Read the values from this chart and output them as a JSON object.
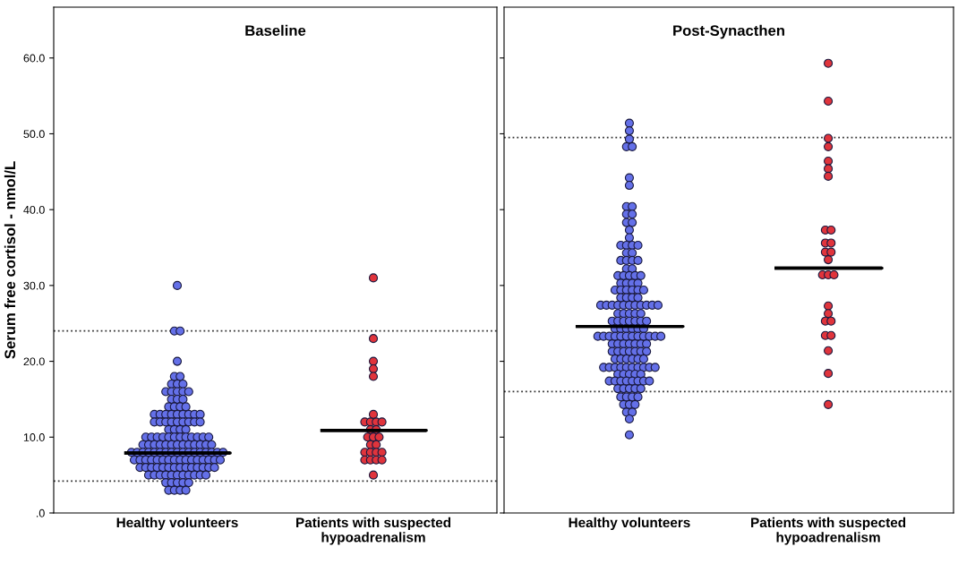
{
  "chart_data": [
    {
      "type": "scatter",
      "title": "Baseline",
      "ylabel": "Serum free cortisol - nmol/L",
      "categories": [
        "Healthy volunteers",
        "Patients with suspected\nhypoadrenalism"
      ],
      "ylim": [
        0,
        66.7
      ],
      "yticks": [
        {
          "value": 0,
          "label": ".0"
        },
        {
          "value": 10,
          "label": "10.0"
        },
        {
          "value": 20,
          "label": "20.0"
        },
        {
          "value": 30,
          "label": "30.0"
        },
        {
          "value": 40,
          "label": "40.0"
        },
        {
          "value": 50,
          "label": "50.0"
        },
        {
          "value": 60,
          "label": "60.0"
        }
      ],
      "grid": false,
      "legend": false,
      "marker": "circle",
      "series": [
        {
          "type": "scatter",
          "color": "#6470e8",
          "x": [
            "Healthy volunteers",
            "Healthy volunteers",
            "Healthy volunteers",
            "Healthy volunteers",
            "Healthy volunteers",
            "Healthy volunteers",
            "Healthy volunteers",
            "Healthy volunteers",
            "Healthy volunteers",
            "Healthy volunteers",
            "Healthy volunteers",
            "Healthy volunteers",
            "Healthy volunteers",
            "Healthy volunteers",
            "Healthy volunteers",
            "Healthy volunteers",
            "Healthy volunteers",
            "Healthy volunteers",
            "Healthy volunteers",
            "Healthy volunteers",
            "Healthy volunteers",
            "Healthy volunteers",
            "Healthy volunteers",
            "Healthy volunteers",
            "Healthy volunteers",
            "Healthy volunteers",
            "Healthy volunteers",
            "Healthy volunteers",
            "Healthy volunteers",
            "Healthy volunteers",
            "Healthy volunteers",
            "Healthy volunteers",
            "Healthy volunteers",
            "Healthy volunteers",
            "Healthy volunteers",
            "Healthy volunteers",
            "Healthy volunteers",
            "Healthy volunteers",
            "Healthy volunteers",
            "Healthy volunteers",
            "Healthy volunteers",
            "Healthy volunteers",
            "Healthy volunteers",
            "Healthy volunteers",
            "Healthy volunteers",
            "Healthy volunteers",
            "Healthy volunteers",
            "Healthy volunteers",
            "Healthy volunteers",
            "Healthy volunteers",
            "Healthy volunteers",
            "Healthy volunteers",
            "Healthy volunteers",
            "Healthy volunteers",
            "Healthy volunteers",
            "Healthy volunteers",
            "Healthy volunteers",
            "Healthy volunteers",
            "Healthy volunteers",
            "Healthy volunteers",
            "Healthy volunteers",
            "Healthy volunteers",
            "Healthy volunteers",
            "Healthy volunteers",
            "Healthy volunteers",
            "Healthy volunteers",
            "Healthy volunteers",
            "Healthy volunteers",
            "Healthy volunteers",
            "Healthy volunteers",
            "Healthy volunteers",
            "Healthy volunteers",
            "Healthy volunteers",
            "Healthy volunteers",
            "Healthy volunteers",
            "Healthy volunteers",
            "Healthy volunteers",
            "Healthy volunteers",
            "Healthy volunteers",
            "Healthy volunteers",
            "Healthy volunteers",
            "Healthy volunteers",
            "Healthy volunteers",
            "Healthy volunteers",
            "Healthy volunteers",
            "Healthy volunteers",
            "Healthy volunteers",
            "Healthy volunteers",
            "Healthy volunteers",
            "Healthy volunteers",
            "Healthy volunteers",
            "Healthy volunteers",
            "Healthy volunteers",
            "Healthy volunteers",
            "Healthy volunteers",
            "Healthy volunteers",
            "Healthy volunteers",
            "Healthy volunteers",
            "Healthy volunteers",
            "Healthy volunteers",
            "Healthy volunteers",
            "Healthy volunteers",
            "Healthy volunteers",
            "Healthy volunteers",
            "Healthy volunteers",
            "Healthy volunteers",
            "Healthy volunteers",
            "Healthy volunteers",
            "Healthy volunteers",
            "Healthy volunteers",
            "Healthy volunteers",
            "Healthy volunteers",
            "Healthy volunteers",
            "Healthy volunteers",
            "Healthy volunteers",
            "Healthy volunteers",
            "Healthy volunteers",
            "Healthy volunteers",
            "Healthy volunteers",
            "Healthy volunteers",
            "Healthy volunteers",
            "Healthy volunteers",
            "Healthy volunteers",
            "Healthy volunteers",
            "Healthy volunteers",
            "Healthy volunteers",
            "Healthy volunteers",
            "Healthy volunteers",
            "Healthy volunteers",
            "Healthy volunteers",
            "Healthy volunteers",
            "Healthy volunteers",
            "Healthy volunteers",
            "Healthy volunteers",
            "Healthy volunteers"
          ],
          "values": [
            30,
            24,
            24,
            20,
            18,
            18,
            17,
            17,
            17,
            16,
            16,
            16,
            16,
            16,
            15,
            15,
            15,
            14,
            14,
            14,
            14,
            13,
            13,
            13,
            13,
            13,
            13,
            13,
            13,
            13,
            12,
            12,
            12,
            12,
            12,
            12,
            12,
            12,
            12,
            11,
            11,
            11,
            11,
            10,
            10,
            10,
            10,
            10,
            10,
            10,
            10,
            10,
            10,
            10,
            10,
            9,
            9,
            9,
            9,
            9,
            9,
            9,
            9,
            9,
            9,
            9,
            9,
            9,
            8,
            8,
            8,
            8,
            8,
            8,
            8,
            8,
            8,
            8,
            8,
            8,
            8,
            8,
            8,
            8,
            8,
            7,
            7,
            7,
            7,
            7,
            7,
            7,
            7,
            7,
            7,
            7,
            7,
            7,
            7,
            7,
            7,
            6,
            6,
            6,
            6,
            6,
            6,
            6,
            6,
            6,
            6,
            6,
            6,
            6,
            6,
            5,
            5,
            5,
            5,
            5,
            5,
            5,
            5,
            5,
            5,
            5,
            4,
            4,
            4,
            4,
            4,
            3,
            3,
            3,
            3
          ]
        },
        {
          "type": "scatter",
          "color": "#e0343c",
          "x": [
            "Patients with suspected\nhypoadrenalism",
            "Patients with suspected\nhypoadrenalism",
            "Patients with suspected\nhypoadrenalism",
            "Patients with suspected\nhypoadrenalism",
            "Patients with suspected\nhypoadrenalism",
            "Patients with suspected\nhypoadrenalism",
            "Patients with suspected\nhypoadrenalism",
            "Patients with suspected\nhypoadrenalism",
            "Patients with suspected\nhypoadrenalism",
            "Patients with suspected\nhypoadrenalism",
            "Patients with suspected\nhypoadrenalism",
            "Patients with suspected\nhypoadrenalism",
            "Patients with suspected\nhypoadrenalism",
            "Patients with suspected\nhypoadrenalism",
            "Patients with suspected\nhypoadrenalism",
            "Patients with suspected\nhypoadrenalism",
            "Patients with suspected\nhypoadrenalism",
            "Patients with suspected\nhypoadrenalism",
            "Patients with suspected\nhypoadrenalism",
            "Patients with suspected\nhypoadrenalism",
            "Patients with suspected\nhypoadrenalism",
            "Patients with suspected\nhypoadrenalism",
            "Patients with suspected\nhypoadrenalism",
            "Patients with suspected\nhypoadrenalism",
            "Patients with suspected\nhypoadrenalism",
            "Patients with suspected\nhypoadrenalism"
          ],
          "values": [
            31,
            23,
            20,
            19,
            18,
            13,
            12,
            12,
            12,
            12,
            11,
            11,
            10,
            10,
            10,
            9,
            9,
            8,
            8,
            8,
            8,
            7,
            7,
            7,
            7,
            5
          ]
        },
        {
          "type": "box",
          "color": "#000000",
          "boxes": [
            {
              "low": 7.9,
              "q1": 7.9,
              "median": 7.9,
              "q3": 7.9,
              "high": 7.9
            },
            {
              "low": 10.9,
              "q1": 10.9,
              "median": 10.9,
              "q3": 10.9,
              "high": 10.9
            }
          ]
        }
      ],
      "ref_lines": [
        {
          "axis": "y",
          "value": 24,
          "color": "#333333",
          "line_style": "dotted"
        },
        {
          "axis": "y",
          "value": 4.2,
          "color": "#333333",
          "line_style": "dotted"
        }
      ]
    },
    {
      "type": "scatter",
      "title": "Post-Synacthen",
      "categories": [
        "Healthy volunteers",
        "Patients with suspected\nhypoadrenalism"
      ],
      "ylim": [
        0,
        66.7
      ],
      "yticks": [
        0,
        10,
        20,
        30,
        40,
        50,
        60
      ],
      "tick_labels": "x",
      "grid": false,
      "legend": false,
      "marker": "circle",
      "series": [
        {
          "type": "scatter",
          "color": "#6470e8",
          "x": [
            "Healthy volunteers",
            "Healthy volunteers",
            "Healthy volunteers",
            "Healthy volunteers",
            "Healthy volunteers",
            "Healthy volunteers",
            "Healthy volunteers",
            "Healthy volunteers",
            "Healthy volunteers",
            "Healthy volunteers",
            "Healthy volunteers",
            "Healthy volunteers",
            "Healthy volunteers",
            "Healthy volunteers",
            "Healthy volunteers",
            "Healthy volunteers",
            "Healthy volunteers",
            "Healthy volunteers",
            "Healthy volunteers",
            "Healthy volunteers",
            "Healthy volunteers",
            "Healthy volunteers",
            "Healthy volunteers",
            "Healthy volunteers",
            "Healthy volunteers",
            "Healthy volunteers",
            "Healthy volunteers",
            "Healthy volunteers",
            "Healthy volunteers",
            "Healthy volunteers",
            "Healthy volunteers",
            "Healthy volunteers",
            "Healthy volunteers",
            "Healthy volunteers",
            "Healthy volunteers",
            "Healthy volunteers",
            "Healthy volunteers",
            "Healthy volunteers",
            "Healthy volunteers",
            "Healthy volunteers",
            "Healthy volunteers",
            "Healthy volunteers",
            "Healthy volunteers",
            "Healthy volunteers",
            "Healthy volunteers",
            "Healthy volunteers",
            "Healthy volunteers",
            "Healthy volunteers",
            "Healthy volunteers",
            "Healthy volunteers",
            "Healthy volunteers",
            "Healthy volunteers",
            "Healthy volunteers",
            "Healthy volunteers",
            "Healthy volunteers",
            "Healthy volunteers",
            "Healthy volunteers",
            "Healthy volunteers",
            "Healthy volunteers",
            "Healthy volunteers",
            "Healthy volunteers",
            "Healthy volunteers",
            "Healthy volunteers",
            "Healthy volunteers",
            "Healthy volunteers",
            "Healthy volunteers",
            "Healthy volunteers",
            "Healthy volunteers",
            "Healthy volunteers",
            "Healthy volunteers",
            "Healthy volunteers",
            "Healthy volunteers",
            "Healthy volunteers",
            "Healthy volunteers",
            "Healthy volunteers",
            "Healthy volunteers",
            "Healthy volunteers",
            "Healthy volunteers",
            "Healthy volunteers",
            "Healthy volunteers",
            "Healthy volunteers",
            "Healthy volunteers",
            "Healthy volunteers",
            "Healthy volunteers",
            "Healthy volunteers",
            "Healthy volunteers",
            "Healthy volunteers",
            "Healthy volunteers",
            "Healthy volunteers",
            "Healthy volunteers",
            "Healthy volunteers",
            "Healthy volunteers",
            "Healthy volunteers",
            "Healthy volunteers",
            "Healthy volunteers",
            "Healthy volunteers",
            "Healthy volunteers",
            "Healthy volunteers",
            "Healthy volunteers",
            "Healthy volunteers",
            "Healthy volunteers",
            "Healthy volunteers",
            "Healthy volunteers",
            "Healthy volunteers",
            "Healthy volunteers",
            "Healthy volunteers",
            "Healthy volunteers",
            "Healthy volunteers",
            "Healthy volunteers",
            "Healthy volunteers",
            "Healthy volunteers",
            "Healthy volunteers",
            "Healthy volunteers",
            "Healthy volunteers",
            "Healthy volunteers",
            "Healthy volunteers",
            "Healthy volunteers",
            "Healthy volunteers",
            "Healthy volunteers",
            "Healthy volunteers",
            "Healthy volunteers",
            "Healthy volunteers",
            "Healthy volunteers",
            "Healthy volunteers",
            "Healthy volunteers",
            "Healthy volunteers",
            "Healthy volunteers",
            "Healthy volunteers",
            "Healthy volunteers",
            "Healthy volunteers",
            "Healthy volunteers",
            "Healthy volunteers",
            "Healthy volunteers",
            "Healthy volunteers",
            "Healthy volunteers",
            "Healthy volunteers",
            "Healthy volunteers",
            "Healthy volunteers",
            "Healthy volunteers",
            "Healthy volunteers",
            "Healthy volunteers",
            "Healthy volunteers",
            "Healthy volunteers",
            "Healthy volunteers",
            "Healthy volunteers",
            "Healthy volunteers"
          ],
          "values": [
            51.4,
            50.4,
            49.3,
            48.3,
            48.3,
            44.2,
            43.2,
            40.4,
            40.4,
            39.4,
            39.4,
            38.3,
            38.3,
            37.3,
            36.3,
            35.3,
            35.3,
            35.3,
            35.3,
            34.3,
            34.3,
            33.3,
            33.3,
            33.3,
            33.3,
            32.2,
            32.2,
            31.3,
            31.3,
            31.3,
            31.3,
            31.3,
            30.3,
            30.3,
            30.3,
            30.3,
            29.4,
            29.4,
            29.4,
            29.4,
            29.4,
            29.4,
            28.4,
            28.4,
            28.4,
            28.4,
            27.4,
            27.4,
            27.4,
            27.4,
            27.4,
            27.4,
            27.4,
            27.4,
            27.4,
            27.4,
            27.4,
            26.3,
            26.3,
            26.3,
            26.3,
            26.3,
            25.3,
            25.3,
            25.3,
            25.3,
            25.3,
            25.3,
            25.3,
            24.3,
            24.3,
            24.3,
            24.3,
            24.3,
            24.3,
            23.3,
            23.3,
            23.3,
            23.3,
            23.3,
            23.3,
            23.3,
            23.3,
            23.3,
            23.3,
            23.3,
            23.3,
            22.3,
            22.3,
            22.3,
            22.3,
            22.3,
            22.3,
            22.3,
            21.3,
            21.3,
            21.3,
            21.3,
            21.3,
            21.3,
            21.3,
            20.3,
            20.3,
            20.3,
            20.3,
            20.3,
            20.3,
            19.2,
            19.2,
            19.2,
            19.2,
            19.2,
            19.2,
            19.2,
            19.2,
            19.2,
            19.2,
            18.3,
            18.3,
            18.3,
            18.3,
            18.3,
            17.4,
            17.4,
            17.4,
            17.4,
            17.4,
            17.4,
            17.4,
            17.4,
            16.4,
            16.4,
            16.4,
            16.4,
            16.4,
            15.3,
            15.3,
            15.3,
            15.3,
            14.3,
            14.3,
            14.3,
            13.3,
            13.3,
            12.4,
            10.3
          ]
        },
        {
          "type": "scatter",
          "color": "#e0343c",
          "x": [
            "Patients with suspected\nhypoadrenalism",
            "Patients with suspected\nhypoadrenalism",
            "Patients with suspected\nhypoadrenalism",
            "Patients with suspected\nhypoadrenalism",
            "Patients with suspected\nhypoadrenalism",
            "Patients with suspected\nhypoadrenalism",
            "Patients with suspected\nhypoadrenalism",
            "Patients with suspected\nhypoadrenalism",
            "Patients with suspected\nhypoadrenalism",
            "Patients with suspected\nhypoadrenalism",
            "Patients with suspected\nhypoadrenalism",
            "Patients with suspected\nhypoadrenalism",
            "Patients with suspected\nhypoadrenalism",
            "Patients with suspected\nhypoadrenalism",
            "Patients with suspected\nhypoadrenalism",
            "Patients with suspected\nhypoadrenalism",
            "Patients with suspected\nhypoadrenalism",
            "Patients with suspected\nhypoadrenalism",
            "Patients with suspected\nhypoadrenalism",
            "Patients with suspected\nhypoadrenalism",
            "Patients with suspected\nhypoadrenalism",
            "Patients with suspected\nhypoadrenalism",
            "Patients with suspected\nhypoadrenalism",
            "Patients with suspected\nhypoadrenalism",
            "Patients with suspected\nhypoadrenalism",
            "Patients with suspected\nhypoadrenalism"
          ],
          "values": [
            59.3,
            54.3,
            49.4,
            48.3,
            46.4,
            45.4,
            44.4,
            37.3,
            37.3,
            35.6,
            35.6,
            34.4,
            34.4,
            33.4,
            31.4,
            31.4,
            31.4,
            27.3,
            26.3,
            25.3,
            25.3,
            23.4,
            23.4,
            21.4,
            18.4,
            14.3
          ]
        },
        {
          "type": "box",
          "color": "#000000",
          "boxes": [
            {
              "low": 24.6,
              "q1": 24.6,
              "median": 24.6,
              "q3": 24.6,
              "high": 24.6
            },
            {
              "low": 32.3,
              "q1": 32.3,
              "median": 32.3,
              "q3": 32.3,
              "high": 32.3
            }
          ]
        }
      ],
      "ref_lines": [
        {
          "axis": "y",
          "value": 49.5,
          "color": "#333333",
          "line_style": "dotted"
        },
        {
          "axis": "y",
          "value": 16,
          "color": "#333333",
          "line_style": "dotted"
        }
      ]
    }
  ]
}
